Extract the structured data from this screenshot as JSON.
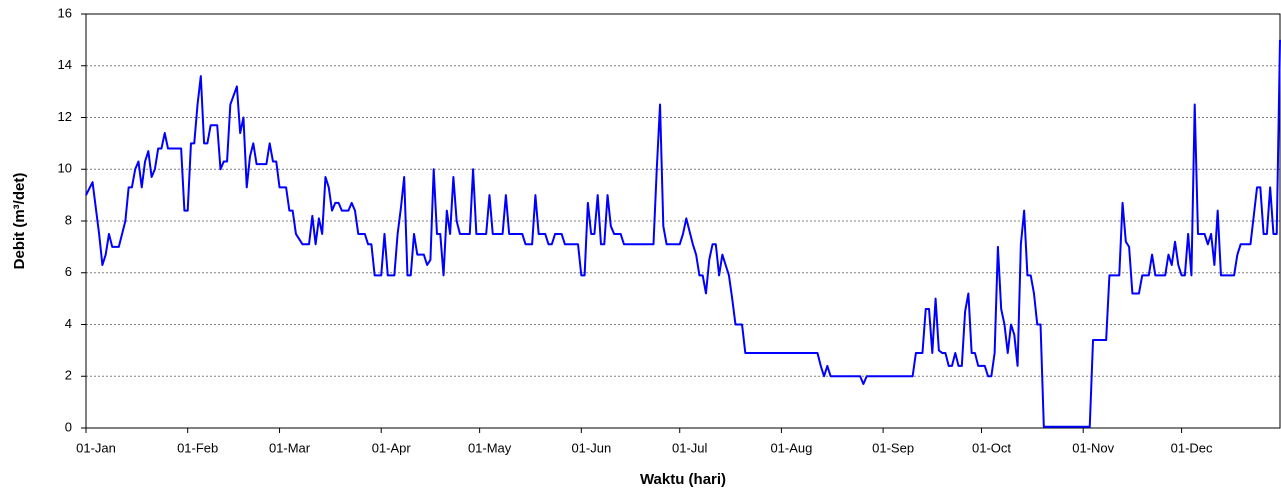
{
  "chart_data": {
    "type": "line",
    "xlabel": "Waktu (hari)",
    "ylabel": "Debit (m³/det)",
    "xlim": [
      0,
      364
    ],
    "ylim": [
      0,
      16
    ],
    "yticks": [
      0,
      2,
      4,
      6,
      8,
      10,
      12,
      14,
      16
    ],
    "xticks": [
      {
        "value": 0,
        "label": "01-Jan"
      },
      {
        "value": 31,
        "label": "01-Feb"
      },
      {
        "value": 59,
        "label": "01-Mar"
      },
      {
        "value": 90,
        "label": "01-Apr"
      },
      {
        "value": 120,
        "label": "01-May"
      },
      {
        "value": 151,
        "label": "01-Jun"
      },
      {
        "value": 181,
        "label": "01-Jul"
      },
      {
        "value": 212,
        "label": "01-Aug"
      },
      {
        "value": 243,
        "label": "01-Sep"
      },
      {
        "value": 273,
        "label": "01-Oct"
      },
      {
        "value": 304,
        "label": "01-Nov"
      },
      {
        "value": 334,
        "label": "01-Dec"
      }
    ],
    "grid": true,
    "series": [
      {
        "color": "#0000ff",
        "x": [
          0,
          2,
          4,
          5,
          6,
          7,
          8,
          10,
          12,
          13,
          14,
          15,
          16,
          17,
          18,
          19,
          20,
          21,
          22,
          23,
          24,
          25,
          29,
          30,
          31,
          32,
          33,
          34,
          35,
          36,
          37,
          38,
          40,
          41,
          42,
          43,
          44,
          46,
          47,
          48,
          49,
          50,
          51,
          52,
          55,
          56,
          57,
          58,
          59,
          61,
          62,
          63,
          64,
          66,
          68,
          69,
          70,
          71,
          72,
          73,
          74,
          75,
          76,
          77,
          78,
          80,
          81,
          82,
          83,
          85,
          86,
          87,
          88,
          90,
          91,
          92,
          94,
          95,
          96,
          97,
          98,
          99,
          100,
          101,
          103,
          104,
          105,
          106,
          107,
          108,
          109,
          110,
          111,
          112,
          113,
          114,
          117,
          118,
          119,
          120,
          122,
          123,
          124,
          127,
          128,
          129,
          133,
          134,
          136,
          137,
          138,
          140,
          141,
          142,
          143,
          145,
          146,
          150,
          151,
          152,
          153,
          154,
          155,
          156,
          157,
          158,
          159,
          160,
          161,
          163,
          164,
          173,
          174,
          175,
          176,
          177,
          181,
          182,
          183,
          185,
          186,
          187,
          188,
          189,
          190,
          191,
          192,
          193,
          194,
          195,
          196,
          197,
          198,
          200,
          201,
          223,
          224,
          225,
          226,
          227,
          236,
          237,
          238,
          252,
          253,
          255,
          256,
          257,
          258,
          259,
          260,
          261,
          262,
          263,
          264,
          265,
          266,
          267,
          268,
          269,
          270,
          271,
          272,
          274,
          275,
          276,
          277,
          278,
          279,
          280,
          281,
          282,
          283,
          284,
          285,
          286,
          287,
          288,
          289,
          290,
          291,
          292,
          306,
          307,
          311,
          312,
          315,
          316,
          317,
          318,
          319,
          321,
          322,
          324,
          325,
          326,
          329,
          330,
          331,
          332,
          333,
          334,
          335,
          336,
          337,
          338,
          339,
          341,
          342,
          343,
          344,
          345,
          346,
          350,
          351,
          352,
          355,
          356,
          357,
          358,
          359,
          360,
          361,
          362,
          363,
          364
        ],
        "values": [
          9,
          9.5,
          7.5,
          6.3,
          6.7,
          7.5,
          7,
          7,
          8,
          9.3,
          9.3,
          10,
          10.3,
          9.3,
          10.3,
          10.7,
          9.7,
          10,
          10.8,
          10.8,
          11.4,
          10.8,
          10.8,
          8.4,
          8.4,
          11,
          11,
          12.5,
          13.6,
          11,
          11,
          11.7,
          11.7,
          10,
          10.3,
          10.3,
          12.5,
          13.2,
          11.4,
          12,
          9.3,
          10.5,
          11,
          10.2,
          10.2,
          11,
          10.3,
          10.3,
          9.3,
          9.3,
          8.4,
          8.4,
          7.5,
          7.1,
          7.1,
          8.2,
          7.1,
          8.1,
          7.5,
          9.7,
          9.3,
          8.4,
          8.7,
          8.7,
          8.4,
          8.4,
          8.7,
          8.4,
          7.5,
          7.5,
          7.1,
          7.1,
          5.9,
          5.9,
          7.5,
          5.9,
          5.9,
          7.5,
          8.5,
          9.7,
          5.9,
          5.9,
          7.5,
          6.7,
          6.7,
          6.3,
          6.5,
          10,
          7.5,
          7.5,
          5.9,
          8.4,
          7.5,
          9.7,
          8,
          7.5,
          7.5,
          10,
          7.5,
          7.5,
          7.5,
          9,
          7.5,
          7.5,
          9,
          7.5,
          7.5,
          7.1,
          7.1,
          9,
          7.5,
          7.5,
          7.1,
          7.1,
          7.5,
          7.5,
          7.1,
          7.1,
          5.9,
          5.9,
          8.7,
          7.5,
          7.5,
          9,
          7.1,
          7.1,
          9,
          7.8,
          7.5,
          7.5,
          7.1,
          7.1,
          10,
          12.5,
          7.8,
          7.1,
          7.1,
          7.5,
          8.1,
          7.1,
          6.7,
          5.9,
          5.9,
          5.2,
          6.5,
          7.1,
          7.1,
          5.9,
          6.7,
          6.3,
          5.9,
          5,
          4,
          4,
          2.9,
          2.9,
          2.4,
          2,
          2.4,
          2,
          2,
          1.7,
          2,
          2,
          2.9,
          2.9,
          4.6,
          4.6,
          2.9,
          5,
          3,
          2.9,
          2.9,
          2.4,
          2.4,
          2.9,
          2.4,
          2.4,
          4.5,
          5.2,
          2.9,
          2.9,
          2.4,
          2.4,
          2,
          2,
          2.9,
          7,
          4.6,
          4,
          2.9,
          4,
          3.6,
          2.4,
          7.1,
          8.4,
          5.9,
          5.9,
          5.2,
          4,
          4,
          0.05,
          0.05,
          3.4,
          3.4,
          5.9,
          5.9,
          8.7,
          7.2,
          7,
          5.2,
          5.2,
          5.9,
          5.9,
          6.7,
          5.9,
          5.9,
          6.7,
          6.3,
          7.2,
          6.3,
          5.9,
          5.9,
          7.5,
          5.9,
          12.5,
          7.5,
          7.5,
          7.1,
          7.5,
          6.3,
          8.4,
          5.9,
          5.9,
          6.7,
          7.1,
          7.1,
          8.2,
          9.3,
          9.3,
          7.5,
          7.5,
          9.3,
          7.5,
          7.5,
          15
        ]
      }
    ]
  }
}
